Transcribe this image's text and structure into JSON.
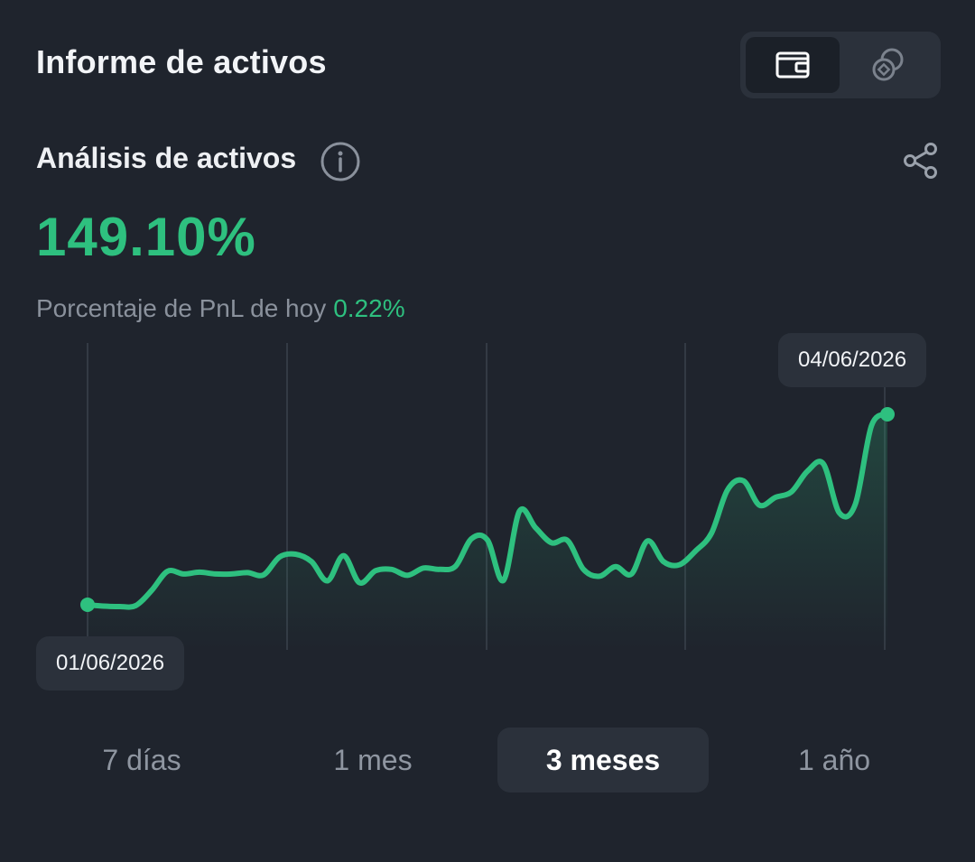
{
  "header": {
    "title": "Informe de activos"
  },
  "view_toggle": {
    "options": [
      {
        "icon": "wallet-icon",
        "active": true
      },
      {
        "icon": "coins-icon",
        "active": false
      }
    ]
  },
  "analysis": {
    "title": "Análisis de activos",
    "value": "149.10%",
    "pnl_label": "Porcentaje de PnL de hoy",
    "pnl_value": "0.22%"
  },
  "colors": {
    "accent_green": "#2ec07f",
    "background": "#1f242d",
    "muted_text": "#8a919c"
  },
  "chart_data": {
    "type": "line",
    "start_date_label": "01/06/2026",
    "end_date_label": "04/06/2026",
    "grid": "vertical",
    "series": [
      {
        "values": [
          0,
          -0.3,
          -0.4,
          -0.2,
          3.1,
          7.3,
          6.7,
          7.1,
          6.7,
          6.7,
          7.0,
          6.5,
          10.4,
          11.0,
          9.4,
          5.2,
          10.7,
          4.8,
          7.4,
          7.7,
          6.4,
          8.0,
          7.7,
          8.4,
          14.4,
          14.1,
          5.3,
          20.4,
          16.8,
          13.5,
          14.0,
          7.7,
          6.2,
          8.3,
          6.7,
          13.9,
          9.4,
          8.7,
          11.7,
          15.6,
          25.0,
          27.0,
          21.7,
          23.4,
          24.6,
          29.1,
          30.7,
          20.0,
          22.0,
          39.0,
          41.5
        ]
      }
    ]
  },
  "range_tabs": [
    {
      "label": "7 días",
      "active": false
    },
    {
      "label": "1 mes",
      "active": false
    },
    {
      "label": "3 meses",
      "active": true
    },
    {
      "label": "1 año",
      "active": false
    }
  ]
}
